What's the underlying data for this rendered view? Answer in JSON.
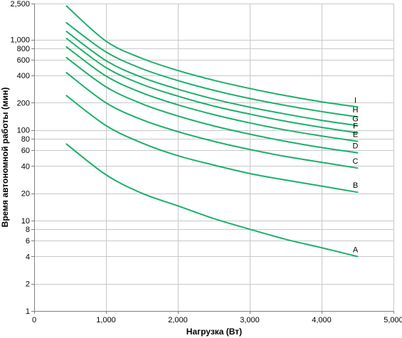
{
  "chart_data": {
    "type": "line",
    "title": "",
    "xlabel": "Нагрузка (Вт)",
    "ylabel": "Время автономной работы (мин)",
    "xlim": [
      0,
      5000
    ],
    "ylim": [
      1,
      2500
    ],
    "yscale": "log",
    "grid": true,
    "line_color": "#1bb06b",
    "x_ticks": [
      0,
      1000,
      2000,
      3000,
      4000,
      5000
    ],
    "x_tick_labels": [
      "0",
      "1,000",
      "2,000",
      "3,000",
      "4,000",
      "5,000"
    ],
    "y_ticks": [
      1,
      2,
      4,
      6,
      8,
      10,
      20,
      40,
      60,
      80,
      100,
      200,
      400,
      600,
      800,
      1000,
      2500
    ],
    "y_tick_labels": [
      "1",
      "2",
      "4",
      "6",
      "8",
      "10",
      "20",
      "40",
      "60",
      "80",
      "100",
      "200",
      "400",
      "600",
      "800",
      "1,000",
      "2,500"
    ],
    "x": [
      450,
      1000,
      1500,
      2000,
      2500,
      3000,
      3500,
      4000,
      4500
    ],
    "series": [
      {
        "name": "A",
        "values": [
          70,
          32,
          20,
          14.5,
          10.5,
          8,
          6.2,
          5,
          4
        ]
      },
      {
        "name": "B",
        "values": [
          240,
          112,
          72,
          52,
          41,
          33,
          28,
          24,
          20.5
        ]
      },
      {
        "name": "C",
        "values": [
          430,
          200,
          130,
          96,
          75,
          61,
          51,
          44,
          38
        ]
      },
      {
        "name": "D",
        "values": [
          630,
          300,
          195,
          143,
          111,
          90,
          75,
          64,
          56
        ]
      },
      {
        "name": "E",
        "values": [
          830,
          395,
          258,
          190,
          148,
          120,
          100,
          86,
          75
        ]
      },
      {
        "name": "F",
        "values": [
          1030,
          490,
          320,
          237,
          184,
          150,
          125,
          107,
          93
        ]
      },
      {
        "name": "G",
        "values": [
          1230,
          585,
          382,
          283,
          220,
          179,
          150,
          128,
          112
        ]
      },
      {
        "name": "H",
        "values": [
          1530,
          730,
          477,
          352,
          275,
          223,
          187,
          160,
          140
        ]
      },
      {
        "name": "I",
        "values": [
          2350,
          960,
          620,
          455,
          355,
          288,
          240,
          205,
          180
        ]
      }
    ]
  }
}
